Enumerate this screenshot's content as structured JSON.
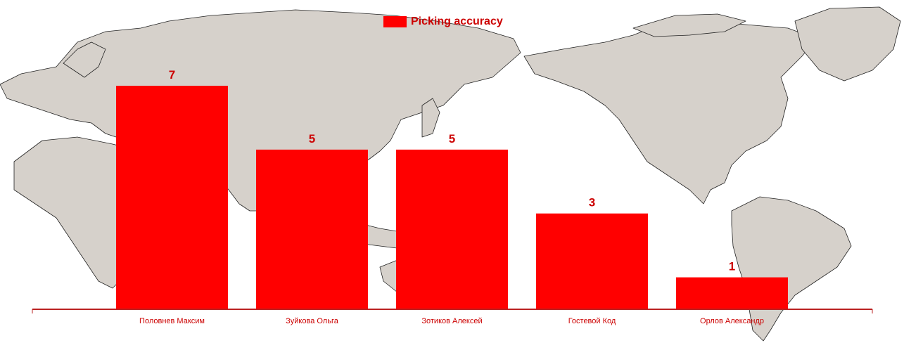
{
  "colors": {
    "bar": "#ff0000",
    "label": "#cc0000",
    "land": "#d6d1cb",
    "landStroke": "#222222",
    "axis": "#bb2222"
  },
  "background": {
    "icon": "world-map-image"
  },
  "chart_data": {
    "type": "bar",
    "title": "",
    "xlabel": "",
    "ylabel": "",
    "categories": [
      "Половнев Максим",
      "Зуйкова Ольга",
      "Зотиков Алексей",
      "Гостевой Код",
      "Орлов Александр"
    ],
    "series": [
      {
        "name": "Picking accuracy",
        "values": [
          7,
          5,
          5,
          3,
          1
        ]
      }
    ],
    "ylim": [
      0,
      7.3
    ],
    "grid": false,
    "legend": "top-center"
  }
}
